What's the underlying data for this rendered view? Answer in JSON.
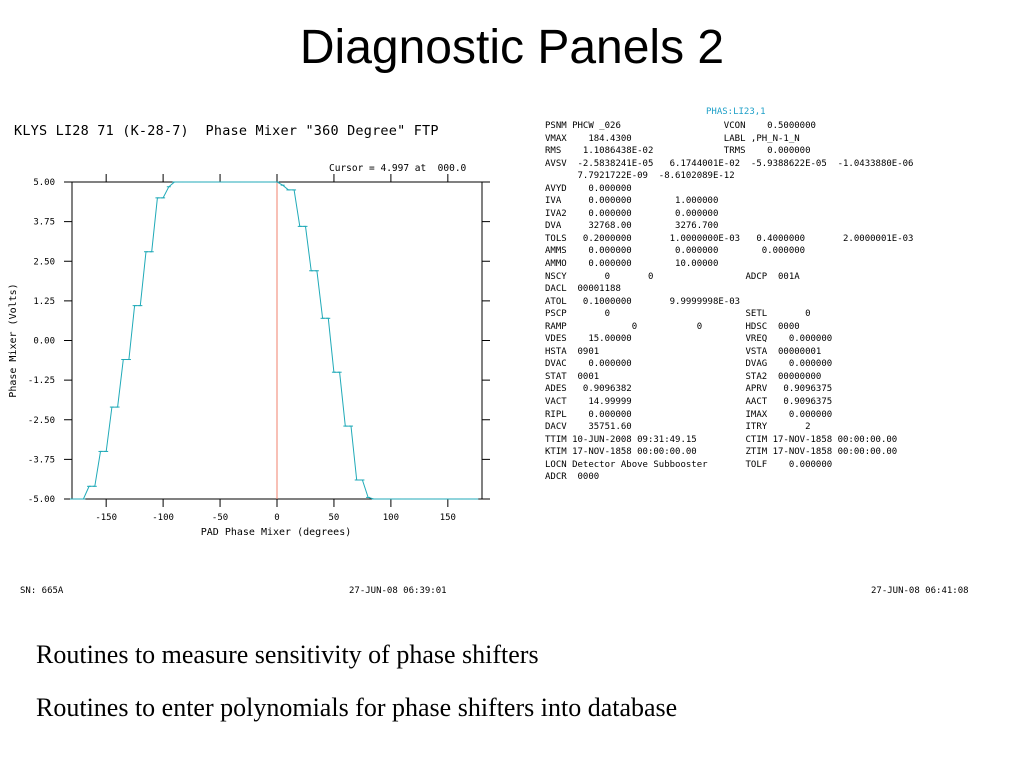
{
  "slide": {
    "title": "Diagnostic Panels 2",
    "bullets": [
      "Routines to measure sensitivity of phase shifters",
      "Routines to enter polynomials for phase shifters into database"
    ]
  },
  "left_panel": {
    "title": "KLYS LI28 71 (K-28-7)  Phase Mixer \"360 Degree\" FTP",
    "cursor_readout": "Cursor = 4.997 at  000.0",
    "footer_sn": "SN: 665A",
    "footer_timestamp": "27-JUN-08 06:39:01"
  },
  "right_panel": {
    "header": "PHAS:LI23,1",
    "footer_timestamp": "27-JUN-08 06:41:08",
    "lines": [
      "PSNM PHCW _026                   VCON    0.5000000",
      "VMAX    184.4300                 LABL ,PH_N-1_N",
      "RMS    1.1086438E-02             TRMS    0.000000",
      "AVSV  -2.5838241E-05   6.1744001E-02  -5.9388622E-05  -1.0433880E-06",
      "      7.7921722E-09  -8.6102089E-12",
      "AVYD    0.000000",
      "IVA     0.000000        1.000000",
      "IVA2    0.000000        0.000000",
      "DVA     32768.00        3276.700",
      "TOLS   0.2000000       1.0000000E-03   0.4000000       2.0000001E-03",
      "AMMS    0.000000        0.000000        0.000000",
      "AMMO    0.000000        10.00000",
      "NSCY       0       0                 ADCP  001A",
      "DACL  00001188",
      "ATOL   0.1000000       9.9999998E-03",
      "PSCP       0                         SETL       0",
      "RAMP            0           0        HDSC  0000",
      "VDES    15.00000                     VREQ    0.000000",
      "HSTA  0901                           VSTA  00000001",
      "DVAC    0.000000                     DVAG    0.000000",
      "STAT  0001                           STA2  00000000",
      "ADES   0.9096382                     APRV   0.9096375",
      "VACT    14.99999                     AACT   0.9096375",
      "RIPL    0.000000                     IMAX    0.000000",
      "DACV    35751.60                     ITRY       2",
      "TTIM 10-JUN-2008 09:31:49.15         CTIM 17-NOV-1858 00:00:00.00",
      "KTIM 17-NOV-1858 00:00:00.00         ZTIM 17-NOV-1858 00:00:00.00",
      "LOCN Detector Above Subbooster       TOLF    0.000000",
      "ADCR  0000"
    ]
  },
  "chart_data": {
    "type": "line",
    "title": "KLYS LI28 71 (K-28-7)  Phase Mixer \"360 Degree\" FTP",
    "xlabel": "PAD Phase Mixer (degrees)",
    "ylabel": "Phase Mixer (Volts)",
    "xlim": [
      -180,
      180
    ],
    "ylim": [
      -5,
      5
    ],
    "xticks": [
      -150,
      -100,
      -50,
      0,
      50,
      100,
      150
    ],
    "xtick_labels": [
      "-150",
      "-100",
      "-50",
      "0",
      "50",
      "100",
      "150"
    ],
    "yticks": [
      5,
      3.75,
      2.5,
      1.25,
      0,
      -1.25,
      -2.5,
      -3.75,
      -5
    ],
    "ytick_labels": [
      "5.00",
      "3.75",
      "2.50",
      "1.25",
      "0.00",
      "-1.25",
      "-2.50",
      "-3.75",
      "-5.00"
    ],
    "cursor_x": 0,
    "line_color": "#20aab8",
    "cursor_color": "#f0826e",
    "series": [
      {
        "x": [
          -180,
          -175,
          -170,
          -165,
          -160,
          -155,
          -150,
          -145,
          -140,
          -135,
          -130,
          -125,
          -120,
          -115,
          -110,
          -105,
          -100,
          -95,
          -90,
          -85,
          -80,
          -75,
          -70,
          -65,
          -60,
          -55,
          -50,
          -45,
          -40,
          -35,
          -30,
          -25,
          -20,
          -15,
          -10,
          -5,
          0,
          5,
          10,
          15,
          20,
          25,
          30,
          35,
          40,
          45,
          50,
          55,
          60,
          65,
          70,
          75,
          80,
          85,
          90,
          95,
          100,
          105,
          110,
          115,
          120,
          125,
          130,
          135,
          140,
          145,
          150,
          155,
          160,
          165,
          170,
          175
        ],
        "y": [
          -5,
          -5,
          -5,
          -4.6,
          -4.6,
          -3.5,
          -3.5,
          -2.1,
          -2.1,
          -0.6,
          -0.6,
          1.1,
          1.1,
          2.8,
          2.8,
          4.5,
          4.5,
          4.85,
          5,
          5,
          5,
          5,
          5,
          5,
          5,
          5,
          5,
          5,
          5,
          5,
          5,
          5,
          5,
          5,
          5,
          5,
          5,
          4.9,
          4.75,
          4.75,
          3.6,
          3.6,
          2.2,
          2.2,
          0.7,
          0.7,
          -1,
          -1,
          -2.7,
          -2.7,
          -4.4,
          -4.4,
          -4.95,
          -5,
          -5,
          -5,
          -5,
          -5,
          -5,
          -5,
          -5,
          -5,
          -5,
          -5,
          -5,
          -5,
          -5,
          -5,
          -5,
          -5,
          -5,
          -5
        ]
      }
    ]
  }
}
